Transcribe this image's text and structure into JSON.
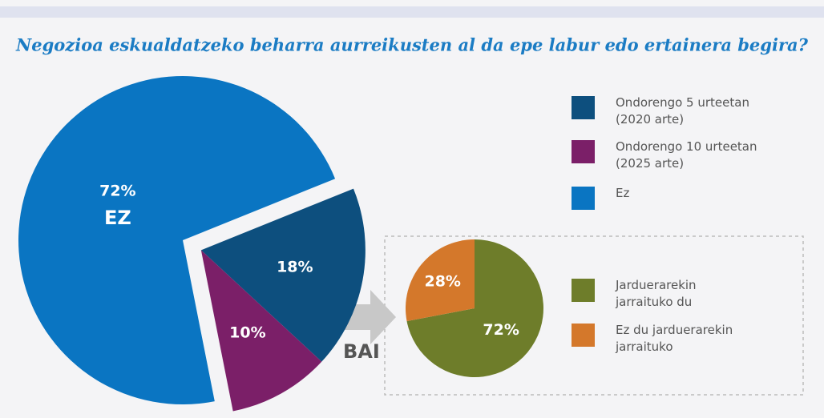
{
  "chart_data": [
    {
      "type": "pie",
      "title": "Negozioa eskualdatzeko beharra aurreikusten al da epe labur edo ertainera begira?",
      "categories": [
        "Ondorengo 5 urteetan (2020 arte)",
        "Ondorengo 10 urteetan (2025 arte)",
        "Ez"
      ],
      "values": [
        18,
        10,
        72
      ],
      "value_labels": [
        "18%",
        "10%",
        "72%"
      ],
      "colors": [
        "#0d4f7e",
        "#7b1f68",
        "#0a75c2"
      ],
      "explode": [
        true,
        true,
        false
      ],
      "annotation": "EZ"
    },
    {
      "type": "pie",
      "categories": [
        "Jarduerarekin jarraituko du",
        "Ez du jarduerarekin jarraituko"
      ],
      "values": [
        72,
        28
      ],
      "value_labels": [
        "72%",
        "28%"
      ],
      "colors": [
        "#6e7d2a",
        "#d4782b"
      ],
      "annotation": "BAI"
    }
  ]
}
